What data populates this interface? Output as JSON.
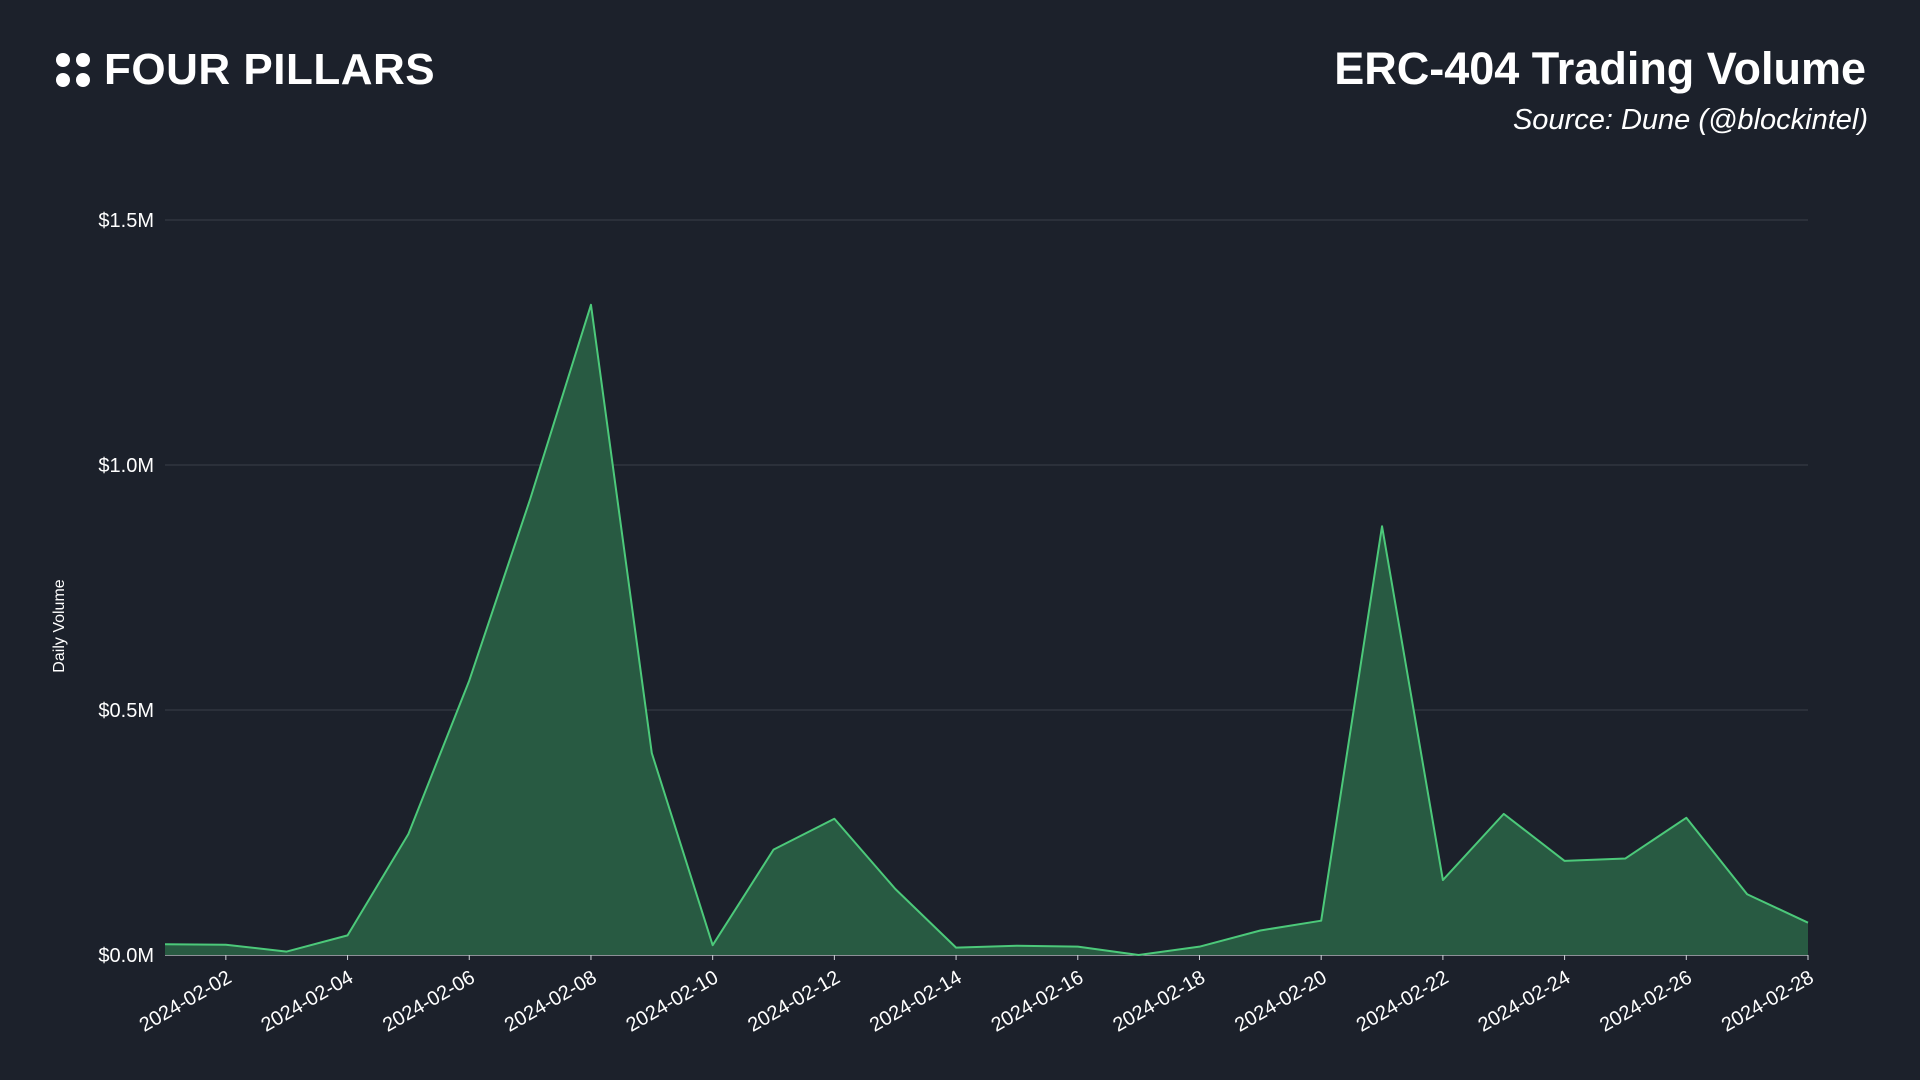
{
  "brand": {
    "name": "FOUR PILLARS",
    "logo_icon": "four-dots-icon"
  },
  "header": {
    "title": "ERC-404 Trading Volume",
    "subtitle": "Source: Dune (@blockintel)"
  },
  "colors": {
    "background": "#1c212b",
    "line": "#4cc97a",
    "area": "#285a42",
    "grid": "#3a3f48",
    "text": "#ffffff"
  },
  "chart_data": {
    "type": "area",
    "title": "ERC-404 Trading Volume",
    "subtitle": "Source: Dune (@blockintel)",
    "ylabel": "Daily Volume",
    "xlabel": "",
    "ylim": [
      0,
      1.5
    ],
    "y_unit": "$M",
    "y_ticks": [
      0,
      0.5,
      1.0,
      1.5
    ],
    "y_tick_labels": [
      "$0.0M",
      "$0.5M",
      "$1.0M",
      "$1.5M"
    ],
    "x_tick_labels": [
      "2024-02-02",
      "2024-02-04",
      "2024-02-06",
      "2024-02-08",
      "2024-02-10",
      "2024-02-12",
      "2024-02-14",
      "2024-02-16",
      "2024-02-18",
      "2024-02-20",
      "2024-02-22",
      "2024-02-24",
      "2024-02-26",
      "2024-02-28"
    ],
    "grid": true,
    "legend": "none",
    "series": [
      {
        "x": [
          "2024-02-01",
          "2024-02-02",
          "2024-02-03",
          "2024-02-04",
          "2024-02-05",
          "2024-02-06",
          "2024-02-07",
          "2024-02-08",
          "2024-02-09",
          "2024-02-10",
          "2024-02-11",
          "2024-02-12",
          "2024-02-13",
          "2024-02-14",
          "2024-02-15",
          "2024-02-16",
          "2024-02-17",
          "2024-02-18",
          "2024-02-19",
          "2024-02-20",
          "2024-02-21",
          "2024-02-22",
          "2024-02-23",
          "2024-02-24",
          "2024-02-25",
          "2024-02-26",
          "2024-02-27",
          "2024-02-28"
        ],
        "values": [
          0.022,
          0.021,
          0.007,
          0.04,
          0.247,
          0.56,
          0.93,
          1.327,
          0.412,
          0.02,
          0.215,
          0.278,
          0.135,
          0.015,
          0.019,
          0.017,
          0.0,
          0.017,
          0.05,
          0.07,
          0.875,
          0.153,
          0.288,
          0.192,
          0.197,
          0.28,
          0.124,
          0.066
        ]
      }
    ]
  }
}
